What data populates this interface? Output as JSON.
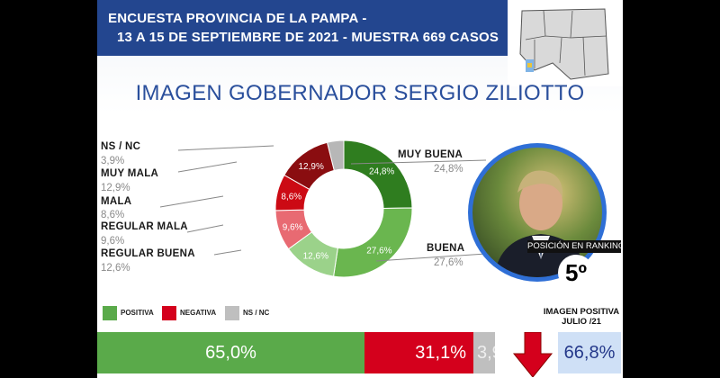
{
  "header": {
    "line1": "ENCUESTA PROVINCIA DE LA PAMPA -",
    "line2": "13 A 15 DE SEPTIEMBRE DE 2021 - MUESTRA 669 CASOS"
  },
  "title": "IMAGEN GOBERNADOR   SERGIO ZILIOTTO",
  "chart_data": {
    "type": "pie",
    "donut": true,
    "title": "IMAGEN GOBERNADOR   SERGIO ZILIOTTO",
    "slices": [
      {
        "label": "MUY BUENA",
        "value": 24.8,
        "display": "24,8%",
        "color": "#2f7d1f"
      },
      {
        "label": "BUENA",
        "value": 27.6,
        "display": "27,6%",
        "color": "#6ab64f"
      },
      {
        "label": "REGULAR BUENA",
        "value": 12.6,
        "display": "12,6%",
        "color": "#9bd28a"
      },
      {
        "label": "REGULAR MALA",
        "value": 9.6,
        "display": "9,6%",
        "color": "#e86a72"
      },
      {
        "label": "MALA",
        "value": 8.6,
        "display": "8,6%",
        "color": "#cc0a14"
      },
      {
        "label": "MUY MALA",
        "value": 12.9,
        "display": "12,9%",
        "color": "#8a0d10"
      },
      {
        "label": "NS / NC",
        "value": 3.9,
        "display": "3,9%",
        "color": "#b7b7b7"
      }
    ],
    "summary": [
      {
        "label": "POSITIVA",
        "value": 65.0,
        "display": "65,0%",
        "color": "#5aaa4a"
      },
      {
        "label": "NEGATIVA",
        "value": 31.1,
        "display": "31,1%",
        "color": "#d4001c"
      },
      {
        "label": "NS / NC",
        "value": 3.9,
        "display": "3,9",
        "color": "#bfbfbf"
      }
    ],
    "previous": {
      "label": "IMAGEN POSITIVA JULIO /21",
      "value": 66.8,
      "display": "66,8%"
    }
  },
  "side_labels": {
    "ns_nc": {
      "label": "NS / NC",
      "value": "3,9%"
    },
    "muy_mala": {
      "label": "MUY MALA",
      "value": "12,9%"
    },
    "mala": {
      "label": "MALA",
      "value": "8,6%"
    },
    "regular_mala": {
      "label": "REGULAR MALA",
      "value": "9,6%"
    },
    "regular_buena": {
      "label": "REGULAR BUENA",
      "value": "12,6%"
    },
    "muy_buena": {
      "label": "MUY BUENA",
      "value": "24,8%"
    },
    "buena": {
      "label": "BUENA",
      "value": "27,6%"
    }
  },
  "ranking": {
    "label": "POSICIÓN EN RANKING",
    "value": "5º"
  },
  "legend": [
    {
      "label": "POSITIVA",
      "color": "#5aaa4a"
    },
    {
      "label": "NEGATIVA",
      "color": "#d4001c"
    },
    {
      "label": "NS / NC",
      "color": "#bfbfbf"
    }
  ],
  "julio": {
    "title": "IMAGEN POSITIVA JULIO /21",
    "value": "66,8%"
  },
  "colors": {
    "header": "#23468f",
    "title": "#2a4f9c",
    "accent_arrow": "#d4001c"
  }
}
